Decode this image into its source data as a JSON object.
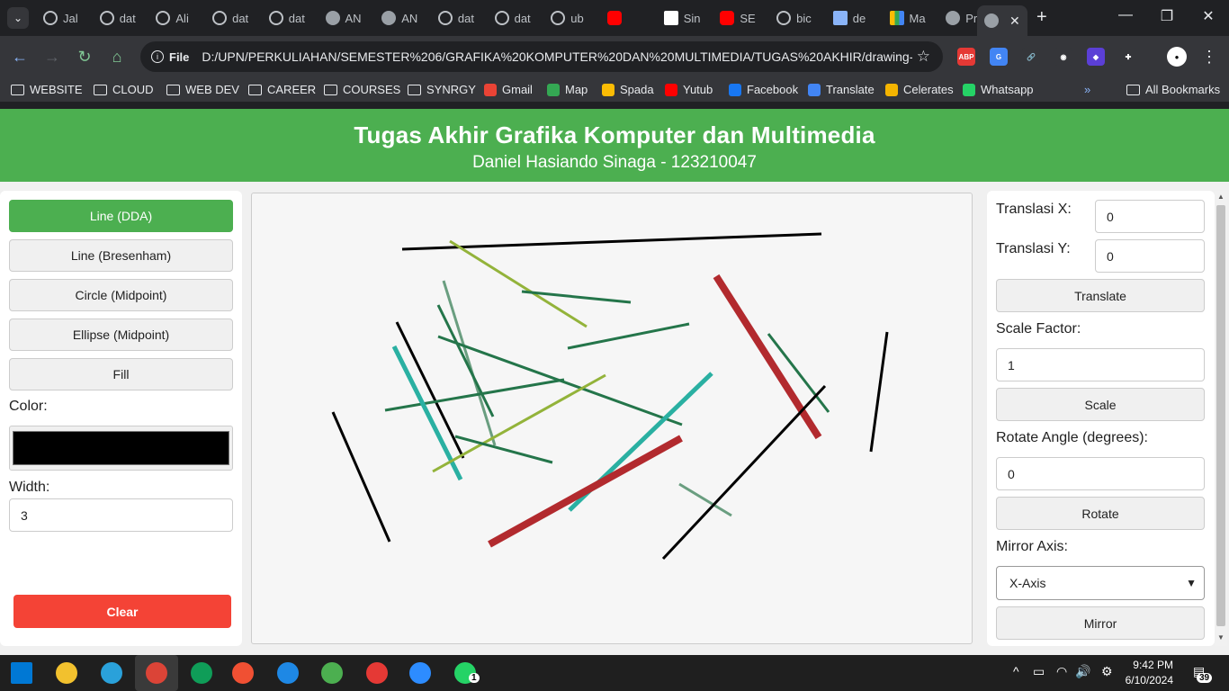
{
  "browser": {
    "tabs": [
      {
        "label": "Jal",
        "icon": "loading-icon"
      },
      {
        "label": "dat",
        "icon": "loading-icon"
      },
      {
        "label": "Ali",
        "icon": "loading-icon"
      },
      {
        "label": "dat",
        "icon": "loading-icon"
      },
      {
        "label": "dat",
        "icon": "loading-icon"
      },
      {
        "label": "AN",
        "icon": "globe-icon"
      },
      {
        "label": "AN",
        "icon": "globe-icon"
      },
      {
        "label": "dat",
        "icon": "loading-icon"
      },
      {
        "label": "dat",
        "icon": "loading-icon"
      },
      {
        "label": "ub",
        "icon": "loading-icon"
      },
      {
        "label": "",
        "icon": "youtube-icon"
      },
      {
        "label": "Sin",
        "icon": "chart-icon"
      },
      {
        "label": "SE",
        "icon": "youtube-icon"
      },
      {
        "label": "bic",
        "icon": "loading-icon"
      },
      {
        "label": "de",
        "icon": "sheet-icon"
      },
      {
        "label": "Ma",
        "icon": "drive-icon"
      },
      {
        "label": "Pro",
        "icon": "globe-icon"
      }
    ],
    "active_tab_close": "✕",
    "new_tab": "+",
    "window_controls": {
      "minimize": "—",
      "restore": "❐",
      "close": "✕"
    },
    "address": {
      "scheme": "File",
      "url": "D:/UPN/PERKULIAHAN/SEMESTER%206/GRAFIKA%20KOMPUTER%20DAN%20MULTIMEDIA/TUGAS%20AKHIR/drawing-web/i..."
    },
    "extensions": [
      {
        "name": "abp-icon",
        "text": "ABP",
        "color": "#e53935"
      },
      {
        "name": "translate-ext-icon",
        "text": "G",
        "color": "#4285f4"
      },
      {
        "name": "link-icon",
        "text": "🔗",
        "color": "#35363a"
      },
      {
        "name": "camera-icon",
        "text": "◉",
        "color": "#35363a"
      },
      {
        "name": "cube-icon",
        "text": "◆",
        "color": "#5b3fd6"
      },
      {
        "name": "puzzle-icon",
        "text": "✚",
        "color": "#35363a"
      }
    ],
    "bookmarks": [
      {
        "label": "WEBSITE",
        "type": "folder"
      },
      {
        "label": "CLOUD",
        "type": "folder"
      },
      {
        "label": "WEB DEV",
        "type": "folder"
      },
      {
        "label": "CAREER",
        "type": "folder"
      },
      {
        "label": "COURSES",
        "type": "folder"
      },
      {
        "label": "SYNRGY",
        "type": "folder"
      },
      {
        "label": "Gmail",
        "type": "link",
        "color": "#ea4335"
      },
      {
        "label": "Map",
        "type": "link",
        "color": "#34a853"
      },
      {
        "label": "Spada",
        "type": "link",
        "color": "#fbbc04"
      },
      {
        "label": "Yutub",
        "type": "link",
        "color": "#ff0000"
      },
      {
        "label": "Facebook",
        "type": "link",
        "color": "#1877f2"
      },
      {
        "label": "Translate",
        "type": "link",
        "color": "#4285f4"
      },
      {
        "label": "Celerates",
        "type": "link",
        "color": "#f4b400"
      },
      {
        "label": "Whatsapp",
        "type": "link",
        "color": "#25d366"
      }
    ],
    "bookmarks_more": "»",
    "all_bookmarks": "All Bookmarks"
  },
  "page": {
    "title": "Tugas Akhir Grafika Komputer dan Multimedia",
    "subtitle": "Daniel Hasiando Sinaga - 123210047",
    "tools": [
      "Line (DDA)",
      "Line (Bresenham)",
      "Circle (Midpoint)",
      "Ellipse (Midpoint)",
      "Fill"
    ],
    "active_tool": 0,
    "color_label": "Color:",
    "color_value": "#000000",
    "width_label": "Width:",
    "width_value": "3",
    "clear_label": "Clear",
    "transform": {
      "translate_x_label": "Translasi X:",
      "translate_x_value": "0",
      "translate_y_label": "Translasi Y:",
      "translate_y_value": "0",
      "translate_button": "Translate",
      "scale_label": "Scale Factor:",
      "scale_value": "1",
      "scale_button": "Scale",
      "rotate_label": "Rotate Angle (degrees):",
      "rotate_value": "0",
      "rotate_button": "Rotate",
      "mirror_label": "Mirror Axis:",
      "mirror_value": "X-Axis",
      "mirror_button": "Mirror"
    }
  },
  "canvas_lines": [
    {
      "points": [
        [
          167,
          62
        ],
        [
          633,
          45
        ]
      ],
      "color": "#000000",
      "width": 3
    },
    {
      "points": [
        [
          220,
          53
        ],
        [
          372,
          148
        ]
      ],
      "color": "#93b33a",
      "width": 3
    },
    {
      "points": [
        [
          300,
          109
        ],
        [
          421,
          121
        ]
      ],
      "color": "#24754a",
      "width": 3
    },
    {
      "points": [
        [
          213,
          97
        ],
        [
          270,
          280
        ]
      ],
      "color": "#6a9e80",
      "width": 3
    },
    {
      "points": [
        [
          207,
          124
        ],
        [
          268,
          248
        ]
      ],
      "color": "#24754a",
      "width": 3
    },
    {
      "points": [
        [
          161,
          143
        ],
        [
          235,
          294
        ]
      ],
      "color": "#000000",
      "width": 3
    },
    {
      "points": [
        [
          207,
          159
        ],
        [
          478,
          257
        ]
      ],
      "color": "#24754a",
      "width": 3
    },
    {
      "points": [
        [
          148,
          241
        ],
        [
          347,
          207
        ]
      ],
      "color": "#24754a",
      "width": 3
    },
    {
      "points": [
        [
          351,
          172
        ],
        [
          486,
          145
        ]
      ],
      "color": "#24754a",
      "width": 3
    },
    {
      "points": [
        [
          158,
          170
        ],
        [
          232,
          318
        ]
      ],
      "color": "#2ab0a2",
      "width": 5
    },
    {
      "points": [
        [
          201,
          309
        ],
        [
          393,
          202
        ]
      ],
      "color": "#93b33a",
      "width": 3
    },
    {
      "points": [
        [
          226,
          270
        ],
        [
          334,
          299
        ]
      ],
      "color": "#24754a",
      "width": 3
    },
    {
      "points": [
        [
          90,
          243
        ],
        [
          153,
          387
        ]
      ],
      "color": "#000000",
      "width": 3
    },
    {
      "points": [
        [
          353,
          352
        ],
        [
          511,
          200
        ]
      ],
      "color": "#2ab0a2",
      "width": 5
    },
    {
      "points": [
        [
          264,
          390
        ],
        [
          477,
          272
        ]
      ],
      "color": "#b22a2e",
      "width": 8
    },
    {
      "points": [
        [
          516,
          92
        ],
        [
          630,
          271
        ]
      ],
      "color": "#b22a2e",
      "width": 8
    },
    {
      "points": [
        [
          574,
          156
        ],
        [
          641,
          243
        ]
      ],
      "color": "#24754a",
      "width": 3
    },
    {
      "points": [
        [
          475,
          323
        ],
        [
          533,
          358
        ]
      ],
      "color": "#6a9e80",
      "width": 3
    },
    {
      "points": [
        [
          457,
          406
        ],
        [
          637,
          214
        ]
      ],
      "color": "#000000",
      "width": 3
    },
    {
      "points": [
        [
          706,
          154
        ],
        [
          688,
          287
        ]
      ],
      "color": "#000000",
      "width": 3
    }
  ],
  "taskbar": {
    "apps": [
      {
        "name": "windows-start-icon",
        "color": "#0078d4"
      },
      {
        "name": "file-explorer-icon",
        "color": "#f2c12e"
      },
      {
        "name": "telegram-icon",
        "color": "#2aa1da"
      },
      {
        "name": "chrome-icon",
        "color": "#db4437"
      },
      {
        "name": "chrome-profile-icon",
        "color": "#0f9d58"
      },
      {
        "name": "git-icon",
        "color": "#f05033"
      },
      {
        "name": "vscode-icon",
        "color": "#1e88e5"
      },
      {
        "name": "maps-icon",
        "color": "#4caf50"
      },
      {
        "name": "chrome-profile-2-icon",
        "color": "#e53935"
      },
      {
        "name": "zoom-icon",
        "color": "#2d8cff"
      },
      {
        "name": "whatsapp-icon",
        "color": "#25d366"
      }
    ],
    "whatsapp_badge": "1",
    "tray": {
      "chevron": "^",
      "battery": "▭",
      "wifi": "◠",
      "volume": "🔊",
      "settings": "⚙"
    },
    "time": "9:42 PM",
    "date": "6/10/2024",
    "notifications": "39"
  }
}
